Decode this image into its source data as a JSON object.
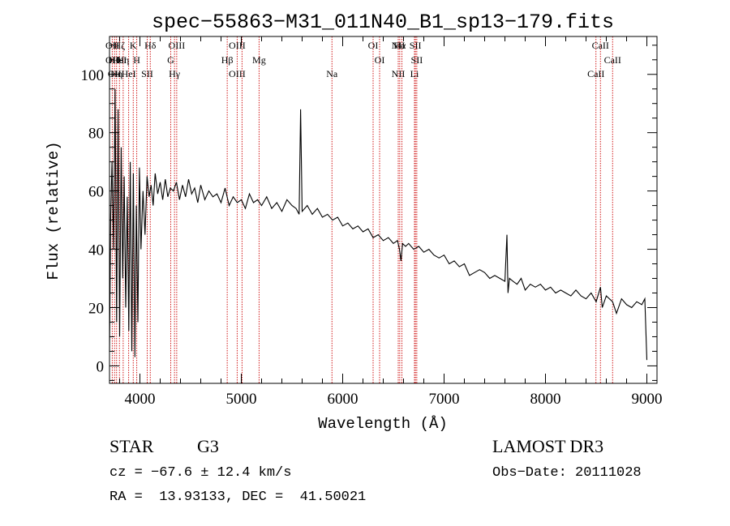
{
  "chart_data": {
    "type": "line",
    "title": "spec−55863−M31_011N40_B1_sp13−179.fits",
    "xlabel": "Wavelength (Å)",
    "ylabel": "Flux (relative)",
    "xlim": [
      3700,
      9100
    ],
    "ylim": [
      -6,
      113
    ],
    "xticks": [
      4000,
      5000,
      6000,
      7000,
      8000,
      9000
    ],
    "xtick_labels": [
      "4000",
      "5000",
      "6000",
      "7000",
      "8000",
      "9000"
    ],
    "yticks": [
      0,
      20,
      40,
      60,
      80,
      100
    ],
    "ytick_labels": [
      "0",
      "20",
      "40",
      "60",
      "80",
      "100"
    ],
    "grid": false,
    "line_color": "#000000",
    "marker_color": "#cc0000",
    "series": [
      {
        "name": "flux",
        "x": [
          3700,
          3712,
          3725,
          3740,
          3755,
          3770,
          3785,
          3800,
          3815,
          3830,
          3845,
          3860,
          3875,
          3890,
          3905,
          3920,
          3935,
          3950,
          3965,
          3980,
          3995,
          4010,
          4030,
          4050,
          4070,
          4090,
          4110,
          4130,
          4150,
          4175,
          4200,
          4225,
          4250,
          4275,
          4300,
          4330,
          4360,
          4390,
          4420,
          4450,
          4480,
          4510,
          4540,
          4570,
          4600,
          4640,
          4680,
          4720,
          4760,
          4800,
          4840,
          4880,
          4920,
          4960,
          5000,
          5040,
          5080,
          5120,
          5160,
          5200,
          5250,
          5300,
          5350,
          5400,
          5450,
          5500,
          5540,
          5570,
          5585,
          5600,
          5650,
          5700,
          5750,
          5800,
          5850,
          5900,
          5950,
          6000,
          6050,
          6100,
          6150,
          6200,
          6250,
          6300,
          6350,
          6400,
          6450,
          6500,
          6540,
          6560,
          6575,
          6590,
          6620,
          6650,
          6700,
          6750,
          6800,
          6850,
          6900,
          6950,
          7000,
          7050,
          7100,
          7150,
          7200,
          7250,
          7300,
          7350,
          7400,
          7450,
          7500,
          7550,
          7600,
          7620,
          7630,
          7645,
          7680,
          7720,
          7760,
          7800,
          7850,
          7900,
          7950,
          8000,
          8050,
          8100,
          8150,
          8200,
          8250,
          8300,
          8350,
          8400,
          8450,
          8500,
          8542,
          8560,
          8600,
          8662,
          8700,
          8750,
          8800,
          8850,
          8900,
          8950,
          8980,
          8990,
          9000
        ],
        "y": [
          5,
          52,
          70,
          40,
          95,
          15,
          88,
          10,
          75,
          30,
          65,
          20,
          58,
          12,
          70,
          5,
          66,
          3,
          55,
          15,
          68,
          40,
          60,
          45,
          65,
          58,
          62,
          55,
          66,
          59,
          63,
          57,
          64,
          58,
          61,
          60,
          63,
          57,
          62,
          58,
          64,
          59,
          61,
          56,
          62,
          57,
          60,
          58,
          59,
          56,
          61,
          55,
          58,
          56,
          57,
          54,
          59,
          56,
          57,
          55,
          58,
          54,
          56,
          53,
          57,
          55,
          54,
          52,
          88,
          53,
          55,
          52,
          54,
          51,
          52,
          50,
          51,
          48,
          49,
          47,
          48,
          46,
          47,
          44,
          45,
          43,
          44,
          42,
          43,
          40,
          36,
          42,
          41,
          42,
          40,
          41,
          39,
          40,
          38,
          37,
          38,
          35,
          36,
          34,
          35,
          31,
          32,
          33,
          32,
          30,
          31,
          30,
          29,
          45,
          25,
          30,
          29,
          28,
          30,
          26,
          28,
          27,
          28,
          26,
          27,
          25,
          26,
          25,
          24,
          26,
          24,
          23,
          25,
          22,
          27,
          20,
          24,
          22,
          18,
          23,
          21,
          20,
          22,
          21,
          23,
          12,
          2
        ],
        "color": "#000000"
      }
    ],
    "line_markers": [
      {
        "wavelength": 3727,
        "labels": [
          "OII",
          "OII"
        ]
      },
      {
        "wavelength": 3750,
        "labels": [
          "Hθ",
          "OII"
        ]
      },
      {
        "wavelength": 3770,
        "labels": [
          "Hη"
        ]
      },
      {
        "wavelength": 3798,
        "labels": [
          "Hζ",
          "HeI"
        ]
      },
      {
        "wavelength": 3835,
        "labels": [
          "Hη"
        ]
      },
      {
        "wavelength": 3889,
        "labels": [
          "HeI"
        ]
      },
      {
        "wavelength": 3934,
        "labels": [
          "K"
        ]
      },
      {
        "wavelength": 3969,
        "labels": [
          "H"
        ]
      },
      {
        "wavelength": 4072,
        "labels": [
          "SII"
        ]
      },
      {
        "wavelength": 4102,
        "labels": [
          "Hδ"
        ]
      },
      {
        "wavelength": 4304,
        "labels": [
          "G"
        ]
      },
      {
        "wavelength": 4341,
        "labels": [
          "Hγ"
        ]
      },
      {
        "wavelength": 4363,
        "labels": [
          "OIII"
        ]
      },
      {
        "wavelength": 4861,
        "labels": [
          "Hβ"
        ]
      },
      {
        "wavelength": 4959,
        "labels": [
          "OIII",
          "OIII"
        ]
      },
      {
        "wavelength": 5007,
        "labels": []
      },
      {
        "wavelength": 5175,
        "labels": [
          "Mg"
        ]
      },
      {
        "wavelength": 5894,
        "labels": [
          "Na"
        ]
      },
      {
        "wavelength": 6300,
        "labels": [
          "OI"
        ]
      },
      {
        "wavelength": 6364,
        "labels": [
          "OI"
        ]
      },
      {
        "wavelength": 6548,
        "labels": [
          "NII",
          "NII"
        ]
      },
      {
        "wavelength": 6563,
        "labels": [
          "Hα"
        ]
      },
      {
        "wavelength": 6584,
        "labels": []
      },
      {
        "wavelength": 6708,
        "labels": [
          "Li"
        ]
      },
      {
        "wavelength": 6717,
        "labels": [
          "SII"
        ]
      },
      {
        "wavelength": 6731,
        "labels": [
          "SII"
        ]
      },
      {
        "wavelength": 8498,
        "labels": [
          "CaII"
        ]
      },
      {
        "wavelength": 8542,
        "labels": [
          "CaII"
        ]
      },
      {
        "wavelength": 8662,
        "labels": [
          "CaII"
        ]
      }
    ]
  },
  "info": {
    "object_class": "STAR",
    "subclass": "G3",
    "survey": "LAMOST DR3",
    "velocity": "cz = −67.6 ± 12.4 km/s",
    "obs_date": "Obs−Date: 20111028",
    "coords": "RA =  13.93133, DEC =  41.50021"
  }
}
